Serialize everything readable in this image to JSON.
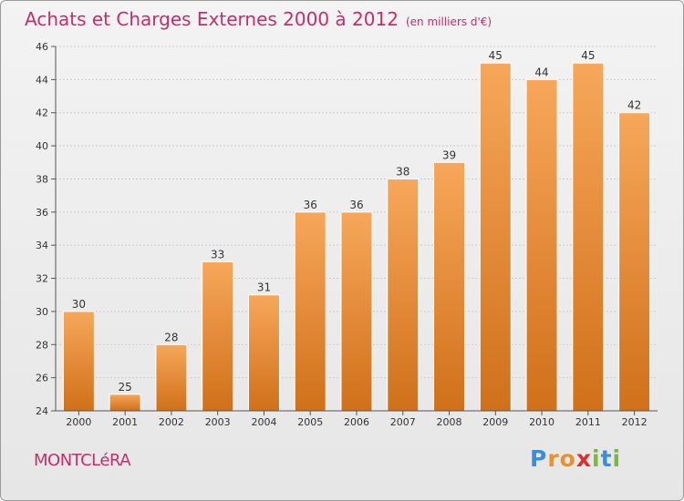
{
  "header": {
    "title": "Achats et Charges Externes 2000 à 2012",
    "subtitle": "(en milliers d'€)"
  },
  "footer": {
    "city": "MONTCLéRA",
    "logo_text": "Proxiti"
  },
  "colors": {
    "title": "#c0306a",
    "bar_top": "#f7a75a",
    "bar_bottom": "#d0701a",
    "axis": "#555555",
    "grid": "#cccccc"
  },
  "chart_data": {
    "type": "bar",
    "title": "Achats et Charges Externes 2000 à 2012",
    "subtitle": "(en milliers d'€)",
    "xlabel": "",
    "ylabel": "",
    "categories": [
      "2000",
      "2001",
      "2002",
      "2003",
      "2004",
      "2005",
      "2006",
      "2007",
      "2008",
      "2009",
      "2010",
      "2011",
      "2012"
    ],
    "values": [
      30,
      25,
      28,
      33,
      31,
      36,
      36,
      38,
      39,
      45,
      44,
      45,
      42
    ],
    "ylim": [
      24,
      46
    ],
    "yticks": [
      24,
      26,
      28,
      30,
      32,
      34,
      36,
      38,
      40,
      42,
      44,
      46
    ],
    "grid": true,
    "data_labels": true
  }
}
